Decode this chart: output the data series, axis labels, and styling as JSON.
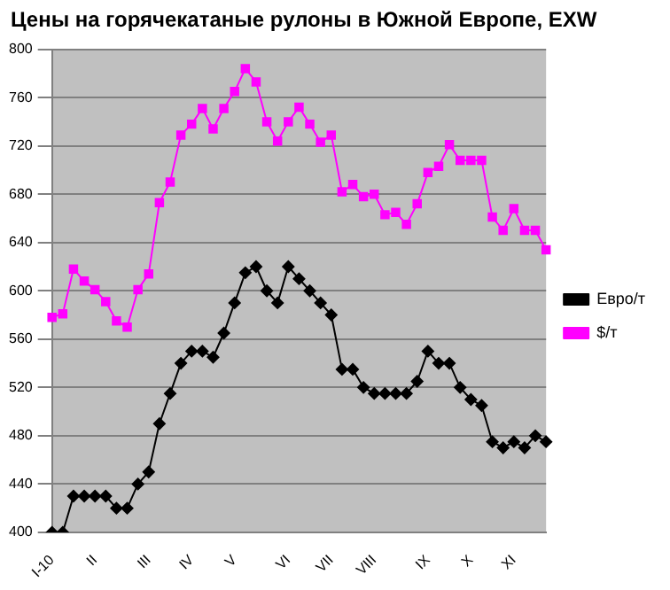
{
  "chart_data": {
    "type": "line",
    "title": "Цены на горячекатаные рулоны в Южной Европе, EXW",
    "categories": [
      "I-10",
      null,
      null,
      null,
      "II",
      null,
      null,
      null,
      null,
      "III",
      null,
      null,
      null,
      "IV",
      null,
      null,
      null,
      "V",
      null,
      null,
      null,
      null,
      "VI",
      null,
      null,
      null,
      "VII",
      null,
      null,
      null,
      "VIII",
      null,
      null,
      null,
      null,
      "IX",
      null,
      null,
      null,
      "X",
      null,
      null,
      null,
      "XI",
      null,
      null,
      null
    ],
    "series": [
      {
        "name": "Евро/т",
        "color": "#000000",
        "marker": "diamond",
        "values": [
          400,
          400,
          430,
          430,
          430,
          430,
          420,
          420,
          440,
          450,
          490,
          515,
          540,
          550,
          550,
          545,
          565,
          590,
          615,
          620,
          600,
          590,
          620,
          610,
          600,
          590,
          580,
          535,
          535,
          520,
          515,
          515,
          515,
          515,
          525,
          550,
          540,
          540,
          520,
          510,
          505,
          475,
          470,
          475,
          470,
          480,
          475
        ]
      },
      {
        "name": "$/т",
        "color": "#ff00ff",
        "marker": "square",
        "values": [
          578,
          581,
          618,
          608,
          601,
          591,
          575,
          570,
          601,
          614,
          673,
          690,
          729,
          738,
          751,
          734,
          751,
          765,
          784,
          773,
          740,
          724,
          740,
          752,
          738,
          723,
          729,
          682,
          688,
          678,
          680,
          663,
          665,
          655,
          672,
          698,
          703,
          721,
          708,
          708,
          708,
          661,
          650,
          668,
          650,
          650,
          634
        ]
      }
    ],
    "ylim": [
      400,
      800
    ],
    "yticks": [
      400,
      440,
      480,
      520,
      560,
      600,
      640,
      680,
      720,
      760,
      800
    ],
    "grid": "y",
    "legend": "right"
  }
}
